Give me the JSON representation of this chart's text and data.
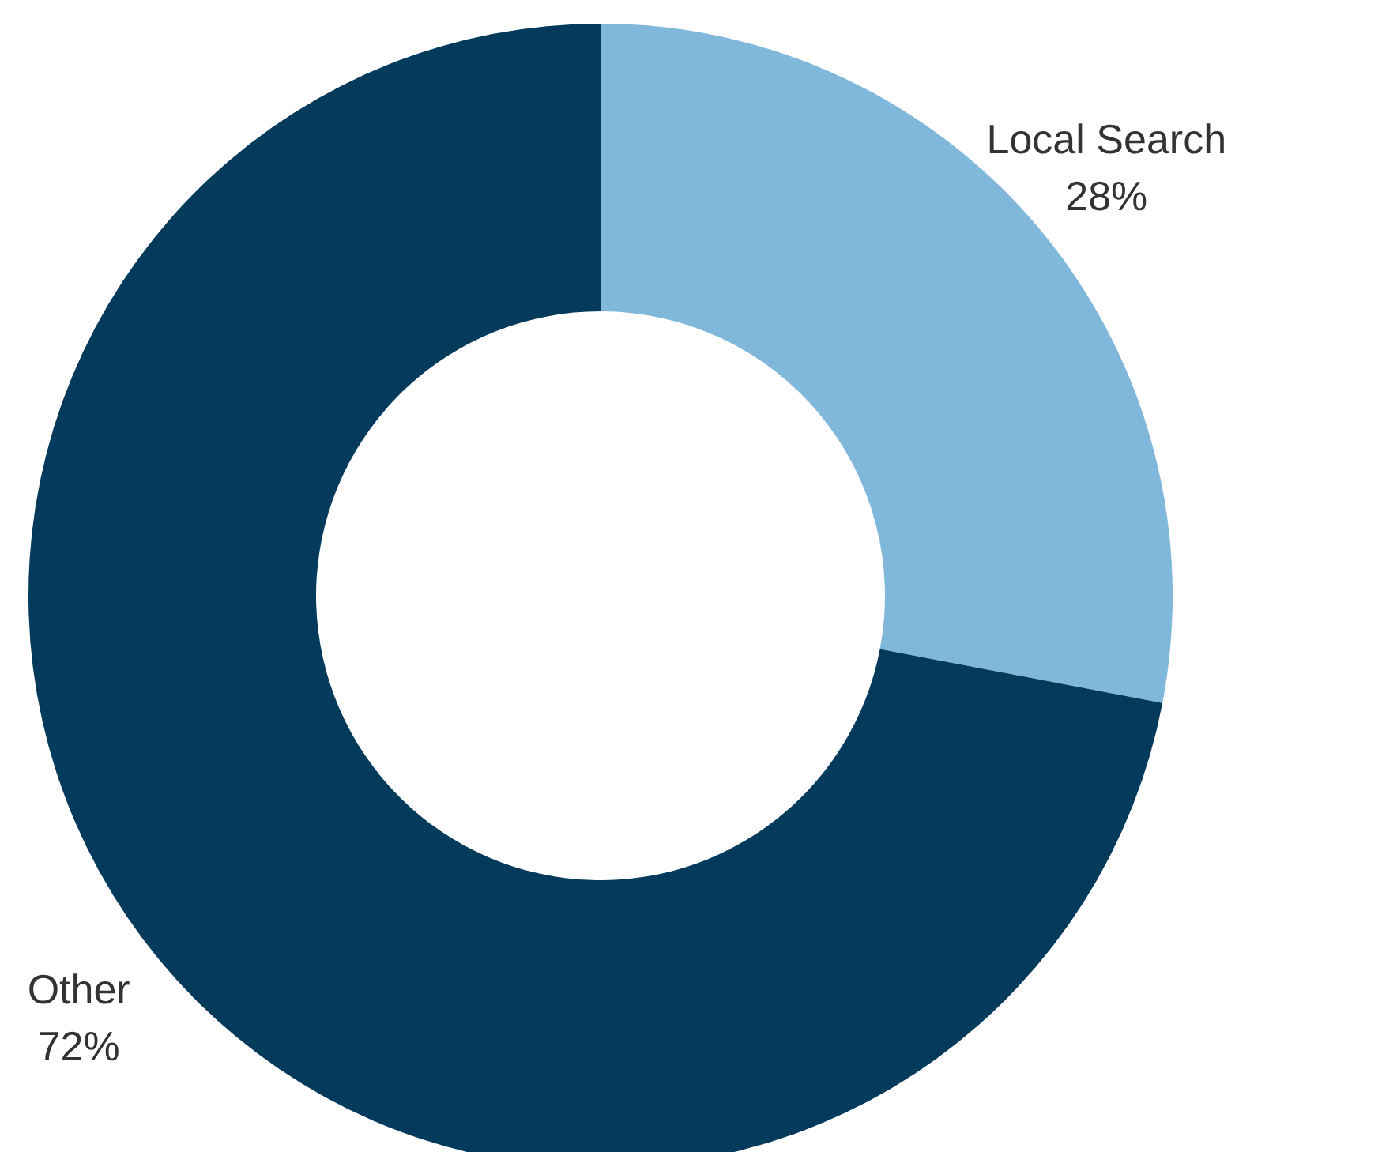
{
  "chart_data": {
    "type": "donut",
    "categories": [
      "Local Search",
      "Other"
    ],
    "values": [
      28,
      72
    ],
    "colors": [
      "#7fb8da",
      "#043a5c"
    ],
    "value_labels": [
      "28%",
      "72%"
    ],
    "legend": false
  }
}
